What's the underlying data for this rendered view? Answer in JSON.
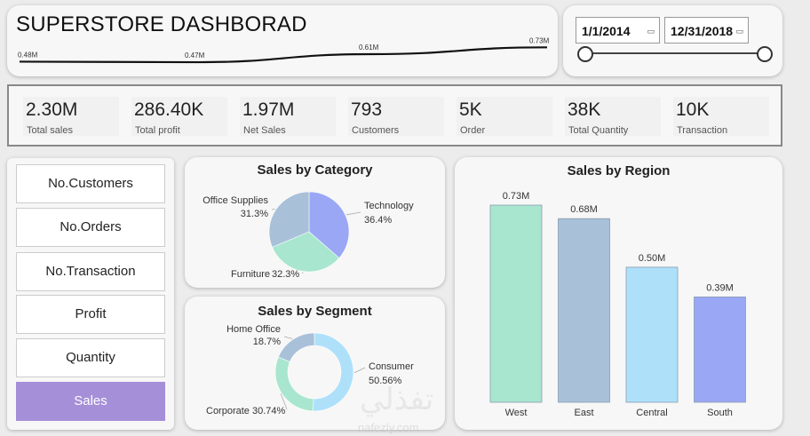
{
  "header": {
    "title": "SUPERSTORE DASHBORAD",
    "trend_labels": [
      "0.48M",
      "0.47M",
      "0.61M",
      "0.73M"
    ],
    "trend_values": [
      0.48,
      0.47,
      0.61,
      0.73
    ]
  },
  "date_filter": {
    "start": "1/1/2014",
    "end": "12/31/2018"
  },
  "kpis": [
    {
      "value": "2.30M",
      "label": "Total sales"
    },
    {
      "value": "286.40K",
      "label": "Total profit"
    },
    {
      "value": "1.97M",
      "label": "Net Sales"
    },
    {
      "value": "793",
      "label": "Customers"
    },
    {
      "value": "5K",
      "label": "Order"
    },
    {
      "value": "38K",
      "label": "Total Quantity"
    },
    {
      "value": "10K",
      "label": "Transaction"
    }
  ],
  "nav": {
    "items": [
      "No.Customers",
      "No.Orders",
      "No.Transaction",
      "Profit",
      "Quantity",
      "Sales"
    ],
    "active": "Sales"
  },
  "chart_data": [
    {
      "type": "pie",
      "title": "Sales by Category",
      "slices": [
        {
          "name": "Technology",
          "value": 36.4,
          "label": "36.4%",
          "color": "#9aa7f5"
        },
        {
          "name": "Furniture",
          "value": 32.3,
          "label": "32.3%",
          "color": "#a8e6cf"
        },
        {
          "name": "Office Supplies",
          "value": 31.3,
          "label": "31.3%",
          "color": "#a9c0d9"
        }
      ]
    },
    {
      "type": "pie",
      "title": "Sales by Segment",
      "donut": true,
      "slices": [
        {
          "name": "Consumer",
          "value": 50.56,
          "label": "50.56%",
          "color": "#aee0fa"
        },
        {
          "name": "Corporate",
          "value": 30.74,
          "label": "30.74%",
          "color": "#a8e6cf"
        },
        {
          "name": "Home Office",
          "value": 18.7,
          "label": "18.7%",
          "color": "#a9c0d9"
        }
      ]
    },
    {
      "type": "bar",
      "title": "Sales by Region",
      "categories": [
        "West",
        "East",
        "Central",
        "South"
      ],
      "values": [
        0.73,
        0.68,
        0.5,
        0.39
      ],
      "data_labels": [
        "0.73M",
        "0.68M",
        "0.50M",
        "0.39M"
      ],
      "colors": [
        "#a8e6cf",
        "#a9c0d9",
        "#aee0fa",
        "#9aa7f5"
      ],
      "ylim": [
        0,
        0.8
      ]
    }
  ],
  "watermark": {
    "text": "تفذلي",
    "url": "nafezly.com"
  }
}
